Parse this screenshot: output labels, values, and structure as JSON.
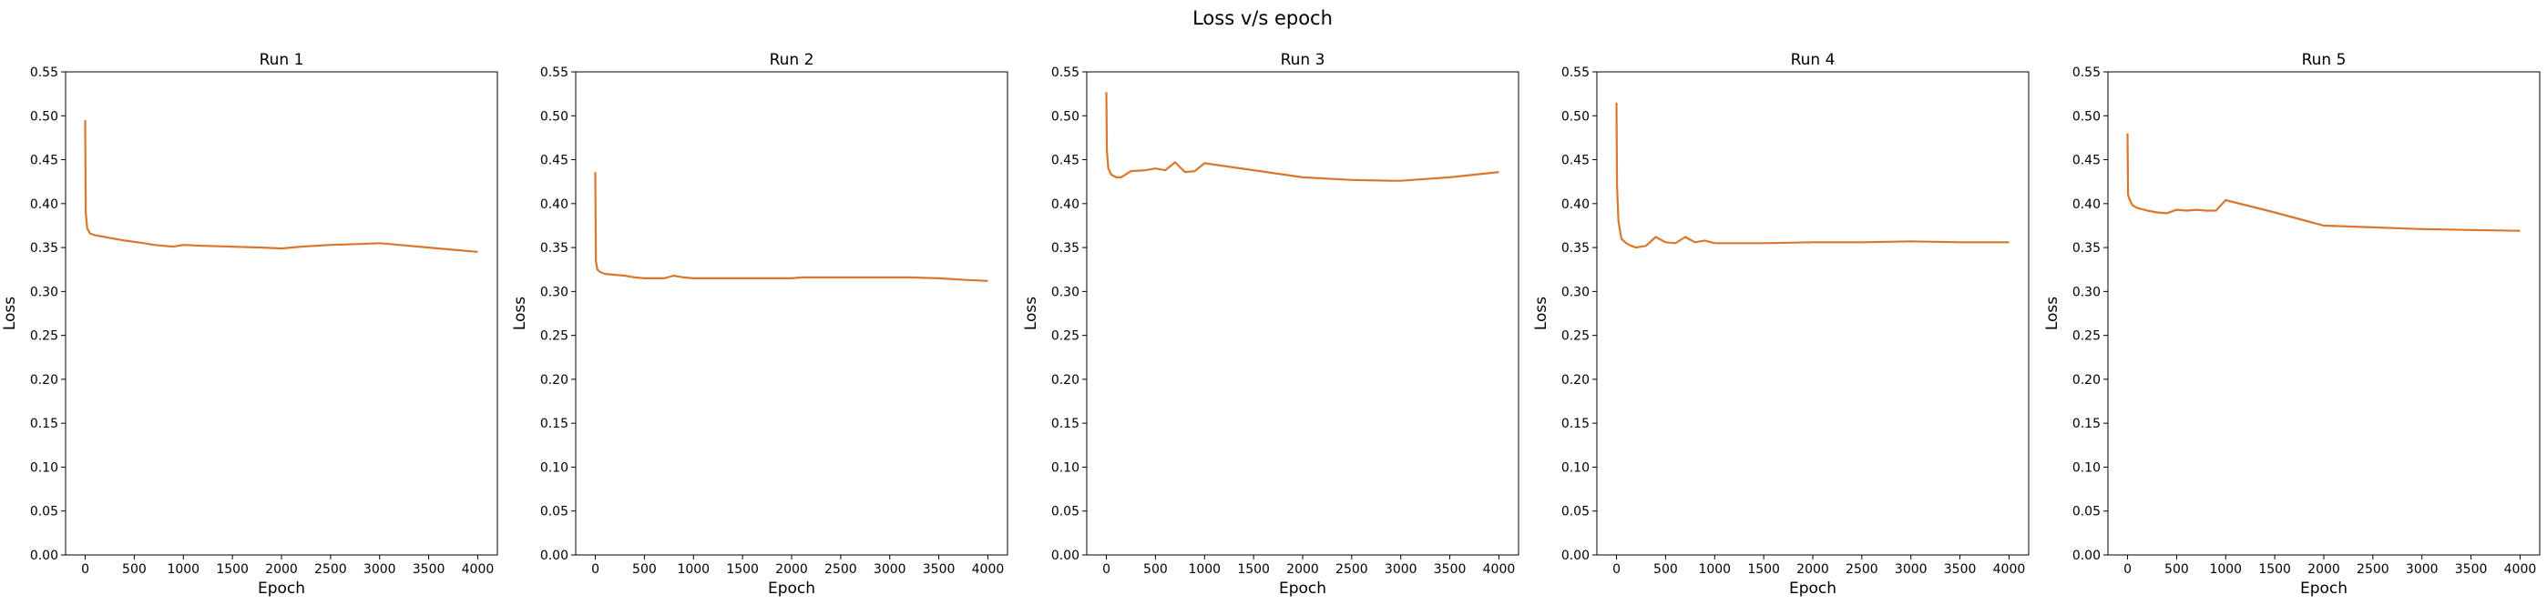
{
  "figure": {
    "suptitle": "Loss v/s epoch"
  },
  "line_color": "#d9782d",
  "chart_data": [
    {
      "type": "line",
      "title": "Run 1",
      "xlabel": "Epoch",
      "ylabel": "Loss",
      "xlim": [
        -200,
        4200
      ],
      "ylim": [
        0,
        0.55
      ],
      "xticks": [
        0,
        500,
        1000,
        1500,
        2000,
        2500,
        3000,
        3500,
        4000
      ],
      "yticks": [
        0.0,
        0.05,
        0.1,
        0.15,
        0.2,
        0.25,
        0.3,
        0.35,
        0.4,
        0.45,
        0.5,
        0.55
      ],
      "grid": false,
      "x": [
        0,
        5,
        20,
        50,
        100,
        200,
        400,
        600,
        700,
        800,
        900,
        1000,
        1200,
        1500,
        1800,
        2000,
        2200,
        2500,
        2800,
        3000,
        3200,
        3500,
        3800,
        4000
      ],
      "y": [
        0.495,
        0.39,
        0.372,
        0.366,
        0.364,
        0.362,
        0.358,
        0.355,
        0.353,
        0.352,
        0.351,
        0.353,
        0.352,
        0.351,
        0.35,
        0.349,
        0.351,
        0.353,
        0.354,
        0.355,
        0.353,
        0.35,
        0.347,
        0.345
      ]
    },
    {
      "type": "line",
      "title": "Run 2",
      "xlabel": "Epoch",
      "ylabel": "Loss",
      "xlim": [
        -200,
        4200
      ],
      "ylim": [
        0,
        0.55
      ],
      "xticks": [
        0,
        500,
        1000,
        1500,
        2000,
        2500,
        3000,
        3500,
        4000
      ],
      "yticks": [
        0.0,
        0.05,
        0.1,
        0.15,
        0.2,
        0.25,
        0.3,
        0.35,
        0.4,
        0.45,
        0.5,
        0.55
      ],
      "grid": false,
      "x": [
        0,
        5,
        20,
        50,
        100,
        300,
        400,
        500,
        600,
        700,
        800,
        900,
        1000,
        1500,
        2000,
        2100,
        2500,
        3000,
        3200,
        3500,
        3800,
        4000
      ],
      "y": [
        0.436,
        0.335,
        0.325,
        0.322,
        0.32,
        0.318,
        0.316,
        0.315,
        0.315,
        0.315,
        0.318,
        0.316,
        0.315,
        0.315,
        0.315,
        0.316,
        0.316,
        0.316,
        0.316,
        0.315,
        0.313,
        0.312
      ]
    },
    {
      "type": "line",
      "title": "Run 3",
      "xlabel": "Epoch",
      "ylabel": "Loss",
      "xlim": [
        -200,
        4200
      ],
      "ylim": [
        0,
        0.55
      ],
      "xticks": [
        0,
        500,
        1000,
        1500,
        2000,
        2500,
        3000,
        3500,
        4000
      ],
      "yticks": [
        0.0,
        0.05,
        0.1,
        0.15,
        0.2,
        0.25,
        0.3,
        0.35,
        0.4,
        0.45,
        0.5,
        0.55
      ],
      "grid": false,
      "x": [
        0,
        5,
        20,
        50,
        100,
        150,
        250,
        400,
        500,
        600,
        700,
        800,
        900,
        1000,
        1500,
        2000,
        2500,
        2900,
        3000,
        3500,
        4000
      ],
      "y": [
        0.527,
        0.46,
        0.44,
        0.433,
        0.43,
        0.43,
        0.437,
        0.438,
        0.44,
        0.438,
        0.447,
        0.436,
        0.437,
        0.446,
        0.438,
        0.43,
        0.427,
        0.426,
        0.426,
        0.43,
        0.436
      ]
    },
    {
      "type": "line",
      "title": "Run 4",
      "xlabel": "Epoch",
      "ylabel": "Loss",
      "xlim": [
        -200,
        4200
      ],
      "ylim": [
        0,
        0.55
      ],
      "xticks": [
        0,
        500,
        1000,
        1500,
        2000,
        2500,
        3000,
        3500,
        4000
      ],
      "yticks": [
        0.0,
        0.05,
        0.1,
        0.15,
        0.2,
        0.25,
        0.3,
        0.35,
        0.4,
        0.45,
        0.5,
        0.55
      ],
      "grid": false,
      "x": [
        0,
        5,
        20,
        50,
        100,
        150,
        200,
        300,
        400,
        500,
        600,
        700,
        800,
        900,
        1000,
        1500,
        2000,
        2500,
        3000,
        3500,
        4000
      ],
      "y": [
        0.515,
        0.42,
        0.38,
        0.36,
        0.355,
        0.352,
        0.35,
        0.352,
        0.362,
        0.356,
        0.355,
        0.362,
        0.356,
        0.358,
        0.355,
        0.355,
        0.356,
        0.356,
        0.357,
        0.356,
        0.356
      ]
    },
    {
      "type": "line",
      "title": "Run 5",
      "xlabel": "Epoch",
      "ylabel": "Loss",
      "xlim": [
        -200,
        4200
      ],
      "ylim": [
        0,
        0.55
      ],
      "xticks": [
        0,
        500,
        1000,
        1500,
        2000,
        2500,
        3000,
        3500,
        4000
      ],
      "yticks": [
        0.0,
        0.05,
        0.1,
        0.15,
        0.2,
        0.25,
        0.3,
        0.35,
        0.4,
        0.45,
        0.5,
        0.55
      ],
      "grid": false,
      "x": [
        0,
        5,
        20,
        50,
        100,
        200,
        300,
        400,
        500,
        600,
        700,
        800,
        900,
        950,
        1000,
        1500,
        2000,
        2500,
        3000,
        3500,
        4000
      ],
      "y": [
        0.48,
        0.41,
        0.405,
        0.398,
        0.395,
        0.392,
        0.39,
        0.389,
        0.393,
        0.392,
        0.393,
        0.392,
        0.392,
        0.398,
        0.404,
        0.39,
        0.375,
        0.373,
        0.371,
        0.37,
        0.369
      ]
    }
  ]
}
